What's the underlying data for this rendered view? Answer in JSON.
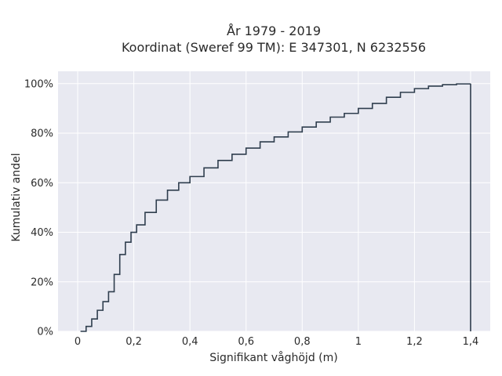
{
  "chart_data": {
    "type": "line",
    "step": true,
    "title": [
      "År 1979 - 2019",
      "Koordinat (Sweref 99 TM): E 347301, N 6232556"
    ],
    "xlabel": "Signifikant våghöjd (m)",
    "ylabel": "Kumulativ andel",
    "xlim": [
      -0.07,
      1.47
    ],
    "ylim": [
      0,
      1.05
    ],
    "x_ticks": [
      0,
      0.2,
      0.4,
      0.6,
      0.8,
      1.0,
      1.2,
      1.4
    ],
    "x_tick_labels": [
      "0",
      "0,2",
      "0,4",
      "0,6",
      "0,8",
      "1",
      "1,2",
      "1,4"
    ],
    "y_ticks": [
      0,
      0.2,
      0.4,
      0.6,
      0.8,
      1.0
    ],
    "y_tick_labels": [
      "0%",
      "20%",
      "40%",
      "60%",
      "80%",
      "100%"
    ],
    "grid": true,
    "background_color": "#e8e9f1",
    "grid_color": "#ffffff",
    "line_color": "#2f3e4e",
    "x": [
      0.01,
      0.03,
      0.05,
      0.07,
      0.09,
      0.11,
      0.13,
      0.15,
      0.17,
      0.19,
      0.21,
      0.24,
      0.28,
      0.32,
      0.36,
      0.4,
      0.45,
      0.5,
      0.55,
      0.6,
      0.65,
      0.7,
      0.75,
      0.8,
      0.85,
      0.9,
      0.95,
      1.0,
      1.05,
      1.1,
      1.15,
      1.2,
      1.25,
      1.3,
      1.35,
      1.4
    ],
    "y": [
      0.0,
      0.02,
      0.05,
      0.085,
      0.12,
      0.16,
      0.23,
      0.31,
      0.36,
      0.4,
      0.43,
      0.48,
      0.53,
      0.57,
      0.6,
      0.625,
      0.66,
      0.69,
      0.715,
      0.74,
      0.765,
      0.785,
      0.805,
      0.825,
      0.845,
      0.865,
      0.88,
      0.9,
      0.92,
      0.945,
      0.965,
      0.98,
      0.99,
      0.996,
      0.999,
      1.0
    ]
  }
}
